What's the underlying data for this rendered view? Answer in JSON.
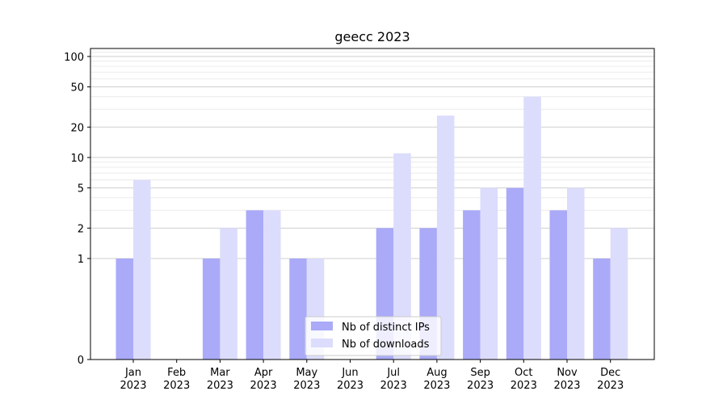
{
  "chart_data": {
    "type": "bar",
    "title": "geecc 2023",
    "xlabel": "",
    "ylabel": "",
    "y_scale": "symlog",
    "ylim": [
      0,
      120
    ],
    "grid": "horizontal",
    "legend_position": "bottom-center",
    "categories": [
      "Jan\n2023",
      "Feb\n2023",
      "Mar\n2023",
      "Apr\n2023",
      "May\n2023",
      "Jun\n2023",
      "Jul\n2023",
      "Aug\n2023",
      "Sep\n2023",
      "Oct\n2023",
      "Nov\n2023",
      "Dec\n2023"
    ],
    "yticks": [
      0,
      1,
      2,
      5,
      10,
      20,
      50,
      100
    ],
    "ytick_labels": [
      "0",
      "1",
      "2",
      "5",
      "10",
      "20",
      "50",
      "100"
    ],
    "series": [
      {
        "name": "Nb of distinct IPs",
        "color": "#aaaaf8",
        "values": [
          1,
          0,
          1,
          3,
          1,
          0,
          2,
          2,
          3,
          5,
          3,
          1
        ]
      },
      {
        "name": "Nb of downloads",
        "color": "#dcdcfc",
        "values": [
          6,
          0,
          2,
          3,
          1,
          0,
          11,
          26,
          5,
          40,
          5,
          2
        ]
      }
    ]
  }
}
